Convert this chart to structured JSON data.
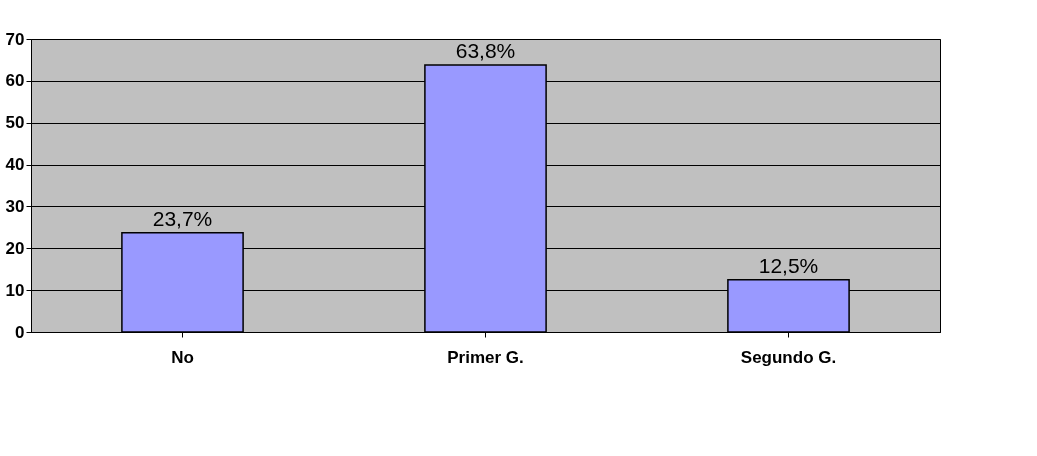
{
  "chart_data": {
    "type": "bar",
    "categories": [
      "No",
      "Primer G.",
      "Segundo G."
    ],
    "values": [
      23.7,
      63.8,
      12.5
    ],
    "value_labels": [
      "23,7%",
      "63,8%",
      "12,5%"
    ],
    "color": "#9999ff",
    "ylim": [
      0,
      70
    ],
    "yticks": [
      0,
      10,
      20,
      30,
      40,
      50,
      60,
      70
    ],
    "grid": "y"
  }
}
